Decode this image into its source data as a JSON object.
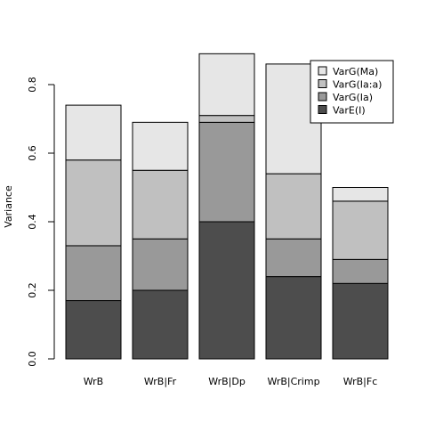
{
  "chart_data": {
    "type": "bar",
    "stacked": true,
    "title": "",
    "xlabel": "",
    "ylabel": "Variance",
    "ylim": [
      0,
      0.92
    ],
    "yticks": [
      "0.0",
      "0.2",
      "0.4",
      "0.6",
      "0.8"
    ],
    "categories": [
      "WrB",
      "WrB|Fr",
      "WrB|Dp",
      "WrB|Crimp",
      "WrB|Fc"
    ],
    "series": [
      {
        "name": "VarE(I)",
        "color": "#4d4d4d",
        "values": [
          0.17,
          0.2,
          0.4,
          0.24,
          0.22
        ]
      },
      {
        "name": "VarG(Ia)",
        "color": "#999999",
        "values": [
          0.16,
          0.15,
          0.29,
          0.11,
          0.07
        ]
      },
      {
        "name": "VarG(Ia:a)",
        "color": "#c0c0c0",
        "values": [
          0.25,
          0.2,
          0.02,
          0.19,
          0.17
        ]
      },
      {
        "name": "VarG(Ma)",
        "color": "#e6e6e6",
        "values": [
          0.16,
          0.14,
          0.18,
          0.32,
          0.04
        ]
      }
    ],
    "legend": {
      "placement": "top-right",
      "order": [
        "VarG(Ma)",
        "VarG(Ia:a)",
        "VarG(Ia)",
        "VarE(I)"
      ]
    },
    "grid": false
  }
}
